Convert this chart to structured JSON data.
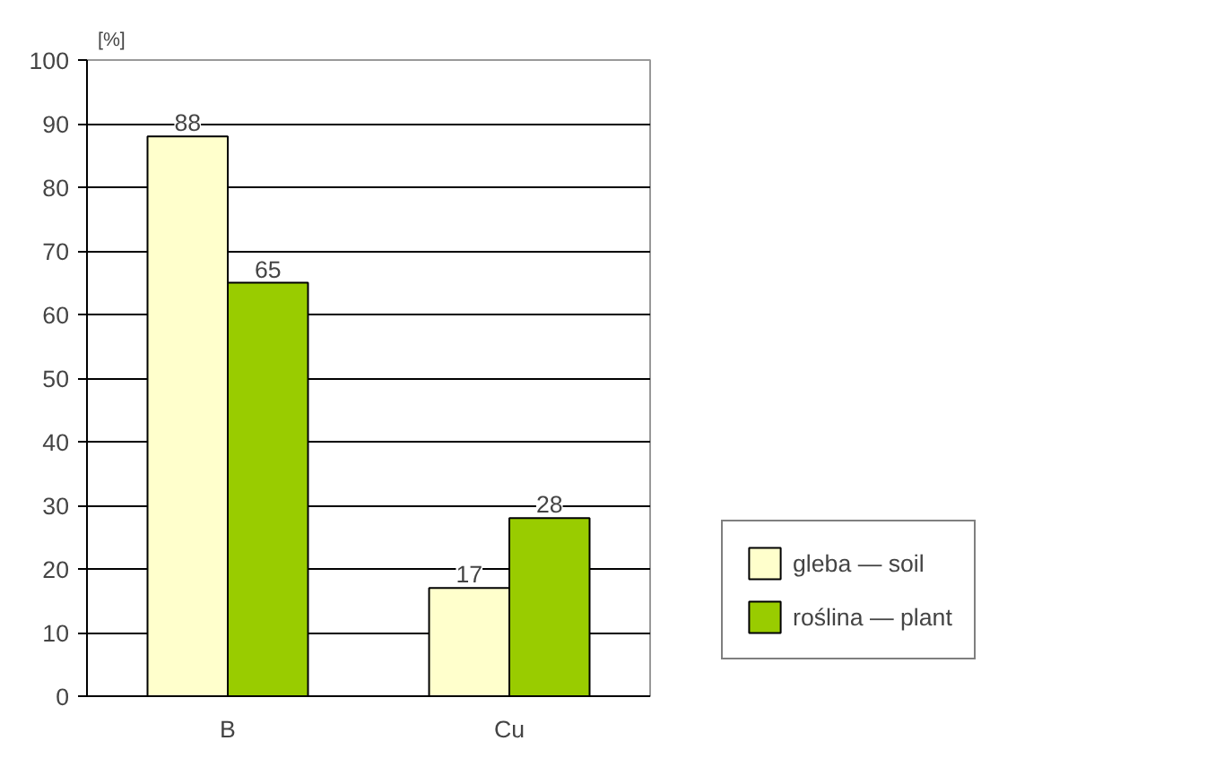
{
  "chart_data": {
    "type": "bar",
    "ylabel": "[%]",
    "categories": [
      "B",
      "Cu"
    ],
    "series": [
      {
        "name": "gleba — soil",
        "color": "#ffffcc",
        "values": [
          88,
          17
        ]
      },
      {
        "name": "roślina — plant",
        "color": "#99cc00",
        "values": [
          65,
          28
        ]
      }
    ],
    "ylim": [
      0,
      100
    ],
    "yticks": [
      0,
      10,
      20,
      30,
      40,
      50,
      60,
      70,
      80,
      90,
      100
    ],
    "grid": "y",
    "legend": "right",
    "data_labels": true
  }
}
